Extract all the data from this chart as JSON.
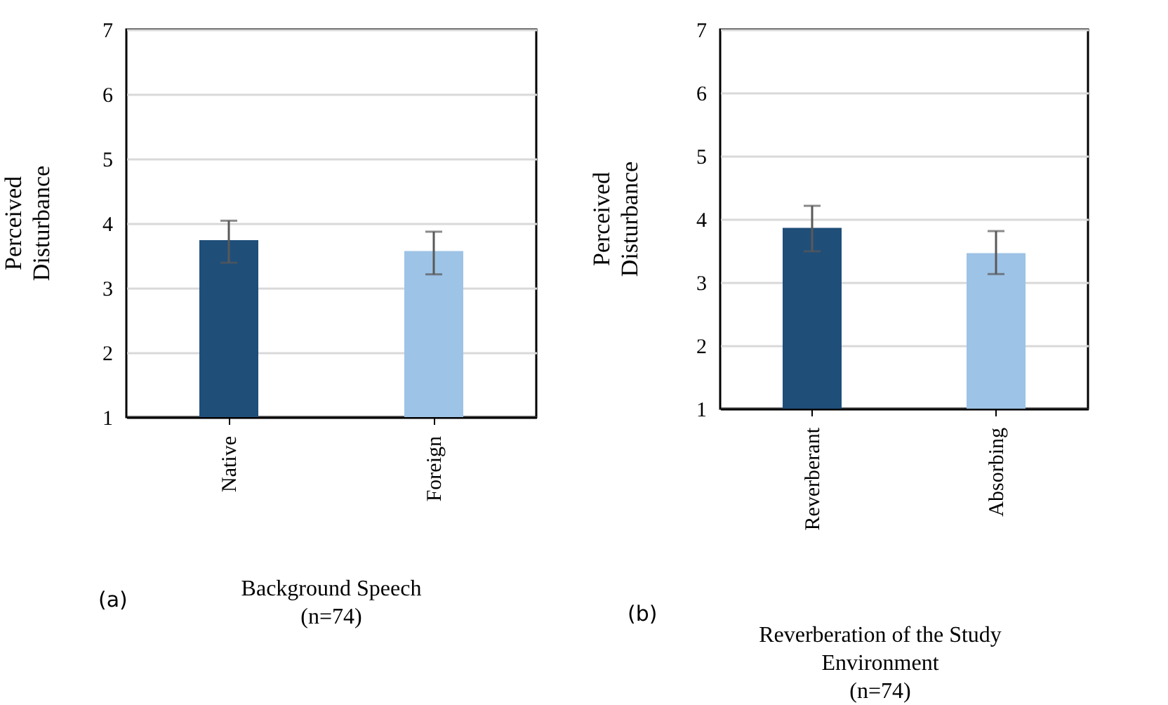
{
  "chart_data": [
    {
      "type": "bar",
      "title": "Background Speech\n(n=74)",
      "ylabel": "Perceived\nDisturbance",
      "annotations": [
        "(a)"
      ],
      "categories": [
        "Native",
        "Foreign"
      ],
      "values": [
        3.74,
        3.57
      ],
      "errors": [
        [
          3.39,
          4.04
        ],
        [
          3.21,
          3.87
        ]
      ],
      "colors": [
        "#1f4e79",
        "#9dc3e6"
      ],
      "ylim": [
        1,
        7
      ],
      "yticks": [
        1,
        2,
        3,
        4,
        5,
        6,
        7
      ],
      "grid": "y"
    },
    {
      "type": "bar",
      "title": "Reverberation of the Study\nEnvironment\n(n=74)",
      "ylabel": "Perceived\nDisturbance",
      "annotations": [
        "(b)"
      ],
      "categories": [
        "Reverberant",
        "Absorbing"
      ],
      "values": [
        3.86,
        3.46
      ],
      "errors": [
        [
          3.49,
          4.21
        ],
        [
          3.13,
          3.81
        ]
      ],
      "colors": [
        "#1f4e79",
        "#9dc3e6"
      ],
      "ylim": [
        1,
        7
      ],
      "yticks": [
        1,
        2,
        3,
        4,
        5,
        6,
        7
      ],
      "grid": "y"
    }
  ]
}
